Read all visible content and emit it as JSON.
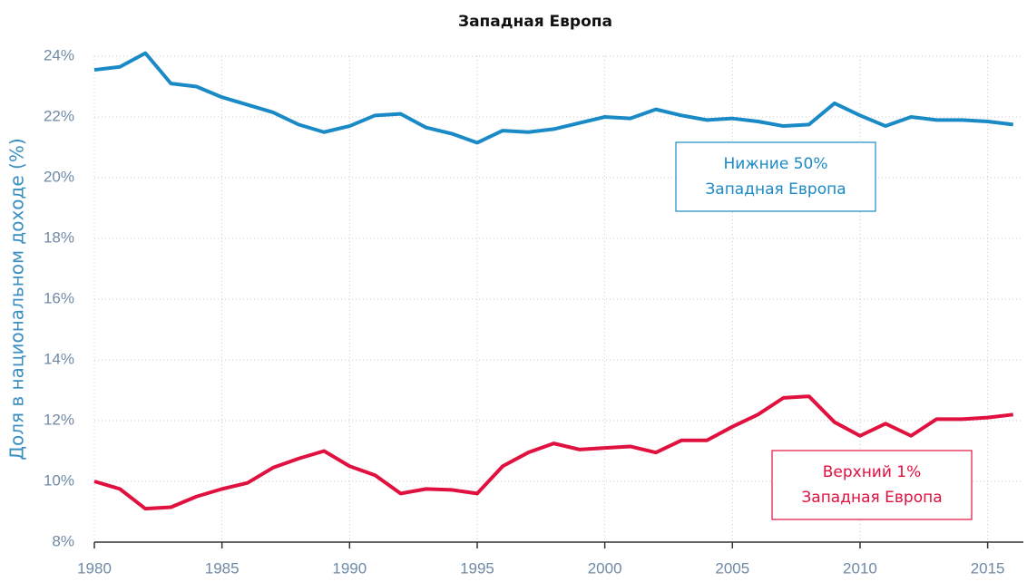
{
  "chart_data": {
    "type": "line",
    "title": "Западная Европа",
    "y_label": "Доля в национальном доходе (%)",
    "x": [
      1980,
      1981,
      1982,
      1983,
      1984,
      1985,
      1986,
      1987,
      1988,
      1989,
      1990,
      1991,
      1992,
      1993,
      1994,
      1995,
      1996,
      1997,
      1998,
      1999,
      2000,
      2001,
      2002,
      2003,
      2004,
      2005,
      2006,
      2007,
      2008,
      2009,
      2010,
      2011,
      2012,
      2013,
      2014,
      2015,
      2016
    ],
    "series": [
      {
        "label": [
          "Нижние 50%",
          "Западная Европа"
        ],
        "color": "#1a8ac6",
        "values": [
          23.55,
          23.65,
          24.1,
          23.1,
          23.0,
          22.65,
          22.4,
          22.15,
          21.75,
          21.5,
          21.7,
          22.05,
          22.1,
          21.65,
          21.45,
          21.15,
          21.55,
          21.5,
          21.6,
          21.8,
          22.0,
          21.95,
          22.25,
          22.05,
          21.9,
          21.95,
          21.85,
          21.7,
          21.75,
          22.45,
          22.05,
          21.7,
          22.0,
          21.9,
          21.9,
          21.85,
          21.75
        ]
      },
      {
        "label": [
          "Верхний 1%",
          "Западная Европа"
        ],
        "color": "#e0103f",
        "values": [
          10.0,
          9.75,
          9.1,
          9.15,
          9.5,
          9.75,
          9.95,
          10.45,
          10.75,
          11.0,
          10.5,
          10.2,
          9.6,
          9.75,
          9.72,
          9.6,
          10.5,
          10.95,
          11.25,
          11.05,
          11.1,
          11.15,
          10.95,
          11.35,
          11.35,
          11.8,
          12.2,
          12.75,
          12.8,
          11.95,
          11.5,
          11.9,
          11.5,
          12.05,
          12.05,
          12.1,
          12.2
        ]
      }
    ],
    "xlim": [
      1980,
      2016.4
    ],
    "xticks": [
      1980,
      1985,
      1990,
      1995,
      2000,
      2005,
      2010,
      2015
    ],
    "ylim": [
      8,
      24
    ],
    "yticks": [
      {
        "value": 8,
        "label": "8%"
      },
      {
        "value": 10,
        "label": "10%"
      },
      {
        "value": 12,
        "label": "12%"
      },
      {
        "value": 14,
        "label": "14%"
      },
      {
        "value": 16,
        "label": "16%"
      },
      {
        "value": 18,
        "label": "18%"
      },
      {
        "value": 20,
        "label": "20%"
      },
      {
        "value": 22,
        "label": "22%"
      },
      {
        "value": 24,
        "label": "24%"
      }
    ],
    "grid": true
  }
}
